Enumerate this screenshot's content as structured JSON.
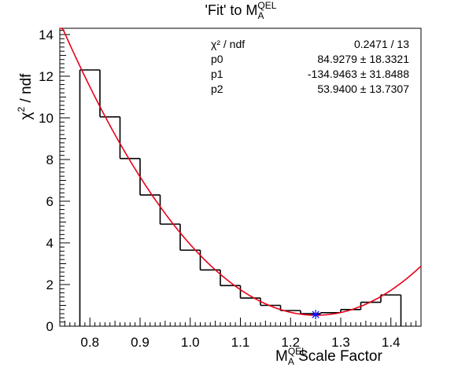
{
  "title": {
    "text": "'Fit' to M",
    "sup": "QEL",
    "sub": "A"
  },
  "xlabel": {
    "text": "M",
    "sup": "QEL",
    "sub": "A",
    "suffix": " Scale Factor"
  },
  "ylabel": {
    "text": "χ",
    "sup": "2",
    "suffix": " / ndf"
  },
  "stats": [
    {
      "name": "χ² / ndf",
      "value": "0.2471 / 13"
    },
    {
      "name": "p0",
      "value": "84.9279 ± 18.3321"
    },
    {
      "name": "p1",
      "value": "-134.9463 ± 31.8488"
    },
    {
      "name": "p2",
      "value": "53.9400 ± 13.7307"
    }
  ],
  "chart_data": {
    "type": "bar",
    "style": "step histogram with quadratic fit curve",
    "xlim": [
      0.74,
      1.46
    ],
    "ylim": [
      0,
      14.3
    ],
    "xticks": [
      "0.8",
      "0.9",
      "1.0",
      "1.1",
      "1.2",
      "1.3",
      "1.4"
    ],
    "yticks": [
      "0",
      "2",
      "4",
      "6",
      "8",
      "10",
      "12",
      "14"
    ],
    "bin_width": 0.04,
    "bin_low_edges": [
      0.78,
      0.82,
      0.86,
      0.9,
      0.94,
      0.98,
      1.02,
      1.06,
      1.1,
      1.14,
      1.18,
      1.22,
      1.26,
      1.3,
      1.34,
      1.38
    ],
    "values": [
      12.3,
      10.05,
      8.05,
      6.3,
      4.9,
      3.65,
      2.7,
      1.95,
      1.35,
      1.0,
      0.75,
      0.6,
      0.65,
      0.8,
      1.15,
      1.5
    ],
    "fit": {
      "function": "p0 + p1*x + p2*x^2",
      "p0": 84.9279,
      "p1": -134.9463,
      "p2": 53.94,
      "color": "#e8001a"
    },
    "best_fit_marker": {
      "x": 1.25,
      "y": 0.56,
      "color": "#1010ff"
    },
    "histogram_color": "#000000",
    "grid": false
  }
}
